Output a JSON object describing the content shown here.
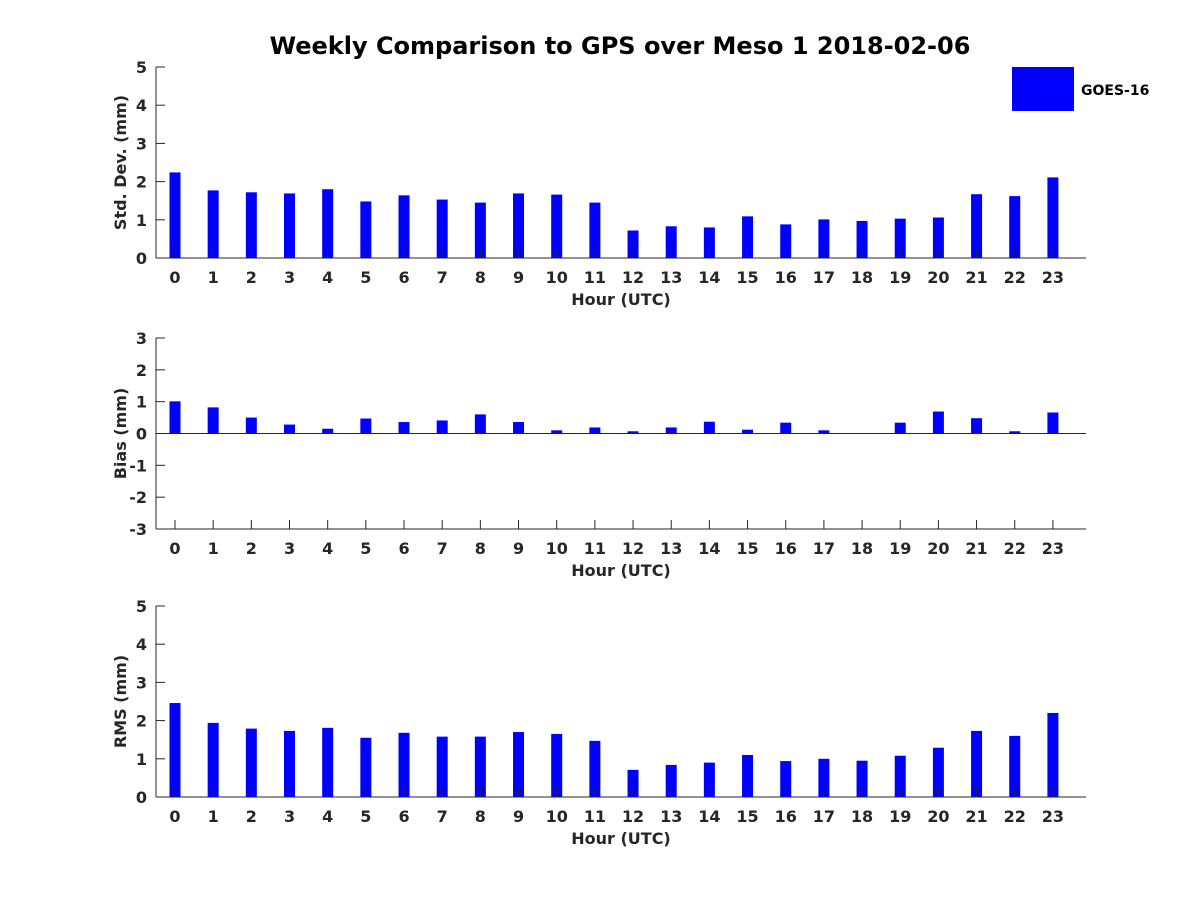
{
  "title": "Weekly Comparison to GPS over Meso 1 2018-02-06",
  "legend": {
    "label": "GOES-16",
    "color": "#0000ff"
  },
  "chart_data": [
    {
      "type": "bar",
      "series_name": "GOES-16",
      "xlabel": "Hour (UTC)",
      "ylabel": "Std. Dev. (mm)",
      "ylim": [
        0,
        5
      ],
      "yticks": [
        0,
        1,
        2,
        3,
        4,
        5
      ],
      "categories": [
        "0",
        "1",
        "2",
        "3",
        "4",
        "5",
        "6",
        "7",
        "8",
        "9",
        "10",
        "11",
        "12",
        "13",
        "14",
        "15",
        "16",
        "17",
        "18",
        "19",
        "20",
        "21",
        "22",
        "23"
      ],
      "values": [
        2.24,
        1.77,
        1.72,
        1.69,
        1.8,
        1.48,
        1.64,
        1.53,
        1.45,
        1.69,
        1.66,
        1.45,
        0.72,
        0.83,
        0.8,
        1.09,
        0.88,
        1.01,
        0.97,
        1.03,
        1.06,
        1.67,
        1.62,
        2.11
      ]
    },
    {
      "type": "bar",
      "series_name": "GOES-16",
      "xlabel": "Hour (UTC)",
      "ylabel": "Bias (mm)",
      "ylim": [
        -3,
        3
      ],
      "yticks": [
        -3,
        -2,
        -1,
        0,
        1,
        2,
        3
      ],
      "categories": [
        "0",
        "1",
        "2",
        "3",
        "4",
        "5",
        "6",
        "7",
        "8",
        "9",
        "10",
        "11",
        "12",
        "13",
        "14",
        "15",
        "16",
        "17",
        "18",
        "19",
        "20",
        "21",
        "22",
        "23"
      ],
      "values": [
        1.01,
        0.82,
        0.5,
        0.28,
        0.15,
        0.47,
        0.36,
        0.41,
        0.6,
        0.36,
        0.1,
        0.19,
        0.07,
        0.19,
        0.37,
        0.12,
        0.34,
        0.1,
        0.0,
        0.34,
        0.69,
        0.48,
        0.07,
        0.66
      ]
    },
    {
      "type": "bar",
      "series_name": "GOES-16",
      "xlabel": "Hour (UTC)",
      "ylabel": "RMS (mm)",
      "ylim": [
        0,
        5
      ],
      "yticks": [
        0,
        1,
        2,
        3,
        4,
        5
      ],
      "categories": [
        "0",
        "1",
        "2",
        "3",
        "4",
        "5",
        "6",
        "7",
        "8",
        "9",
        "10",
        "11",
        "12",
        "13",
        "14",
        "15",
        "16",
        "17",
        "18",
        "19",
        "20",
        "21",
        "22",
        "23"
      ],
      "values": [
        2.46,
        1.94,
        1.79,
        1.73,
        1.81,
        1.55,
        1.68,
        1.58,
        1.58,
        1.7,
        1.65,
        1.47,
        0.71,
        0.84,
        0.9,
        1.1,
        0.94,
        1.0,
        0.95,
        1.08,
        1.29,
        1.73,
        1.6,
        2.2
      ]
    }
  ]
}
